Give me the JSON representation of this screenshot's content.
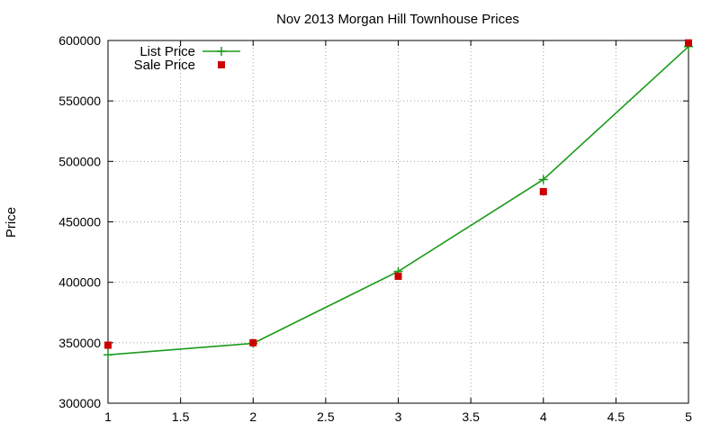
{
  "chart_data": {
    "type": "line",
    "title": "Nov 2013 Morgan Hill Townhouse Prices",
    "xlabel": "",
    "ylabel": "Price",
    "x_ticks": [
      "1",
      "1.5",
      "2",
      "2.5",
      "3",
      "3.5",
      "4",
      "4.5",
      "5"
    ],
    "y_ticks": [
      "300000",
      "350000",
      "400000",
      "450000",
      "500000",
      "550000",
      "600000"
    ],
    "xlim": [
      1,
      5
    ],
    "ylim": [
      300000,
      600000
    ],
    "grid": true,
    "legend_position": "top-left",
    "series": [
      {
        "name": "List Price",
        "style": "line-with-plus-markers",
        "color": "#1a9a1a",
        "x": [
          1,
          2,
          3,
          4,
          5
        ],
        "y": [
          340000,
          349500,
          409000,
          485000,
          595000
        ]
      },
      {
        "name": "Sale Price",
        "style": "square-markers",
        "color": "#cc0000",
        "x": [
          1,
          2,
          3,
          4,
          5
        ],
        "y": [
          348000,
          350000,
          405000,
          475000,
          598000
        ]
      }
    ]
  }
}
